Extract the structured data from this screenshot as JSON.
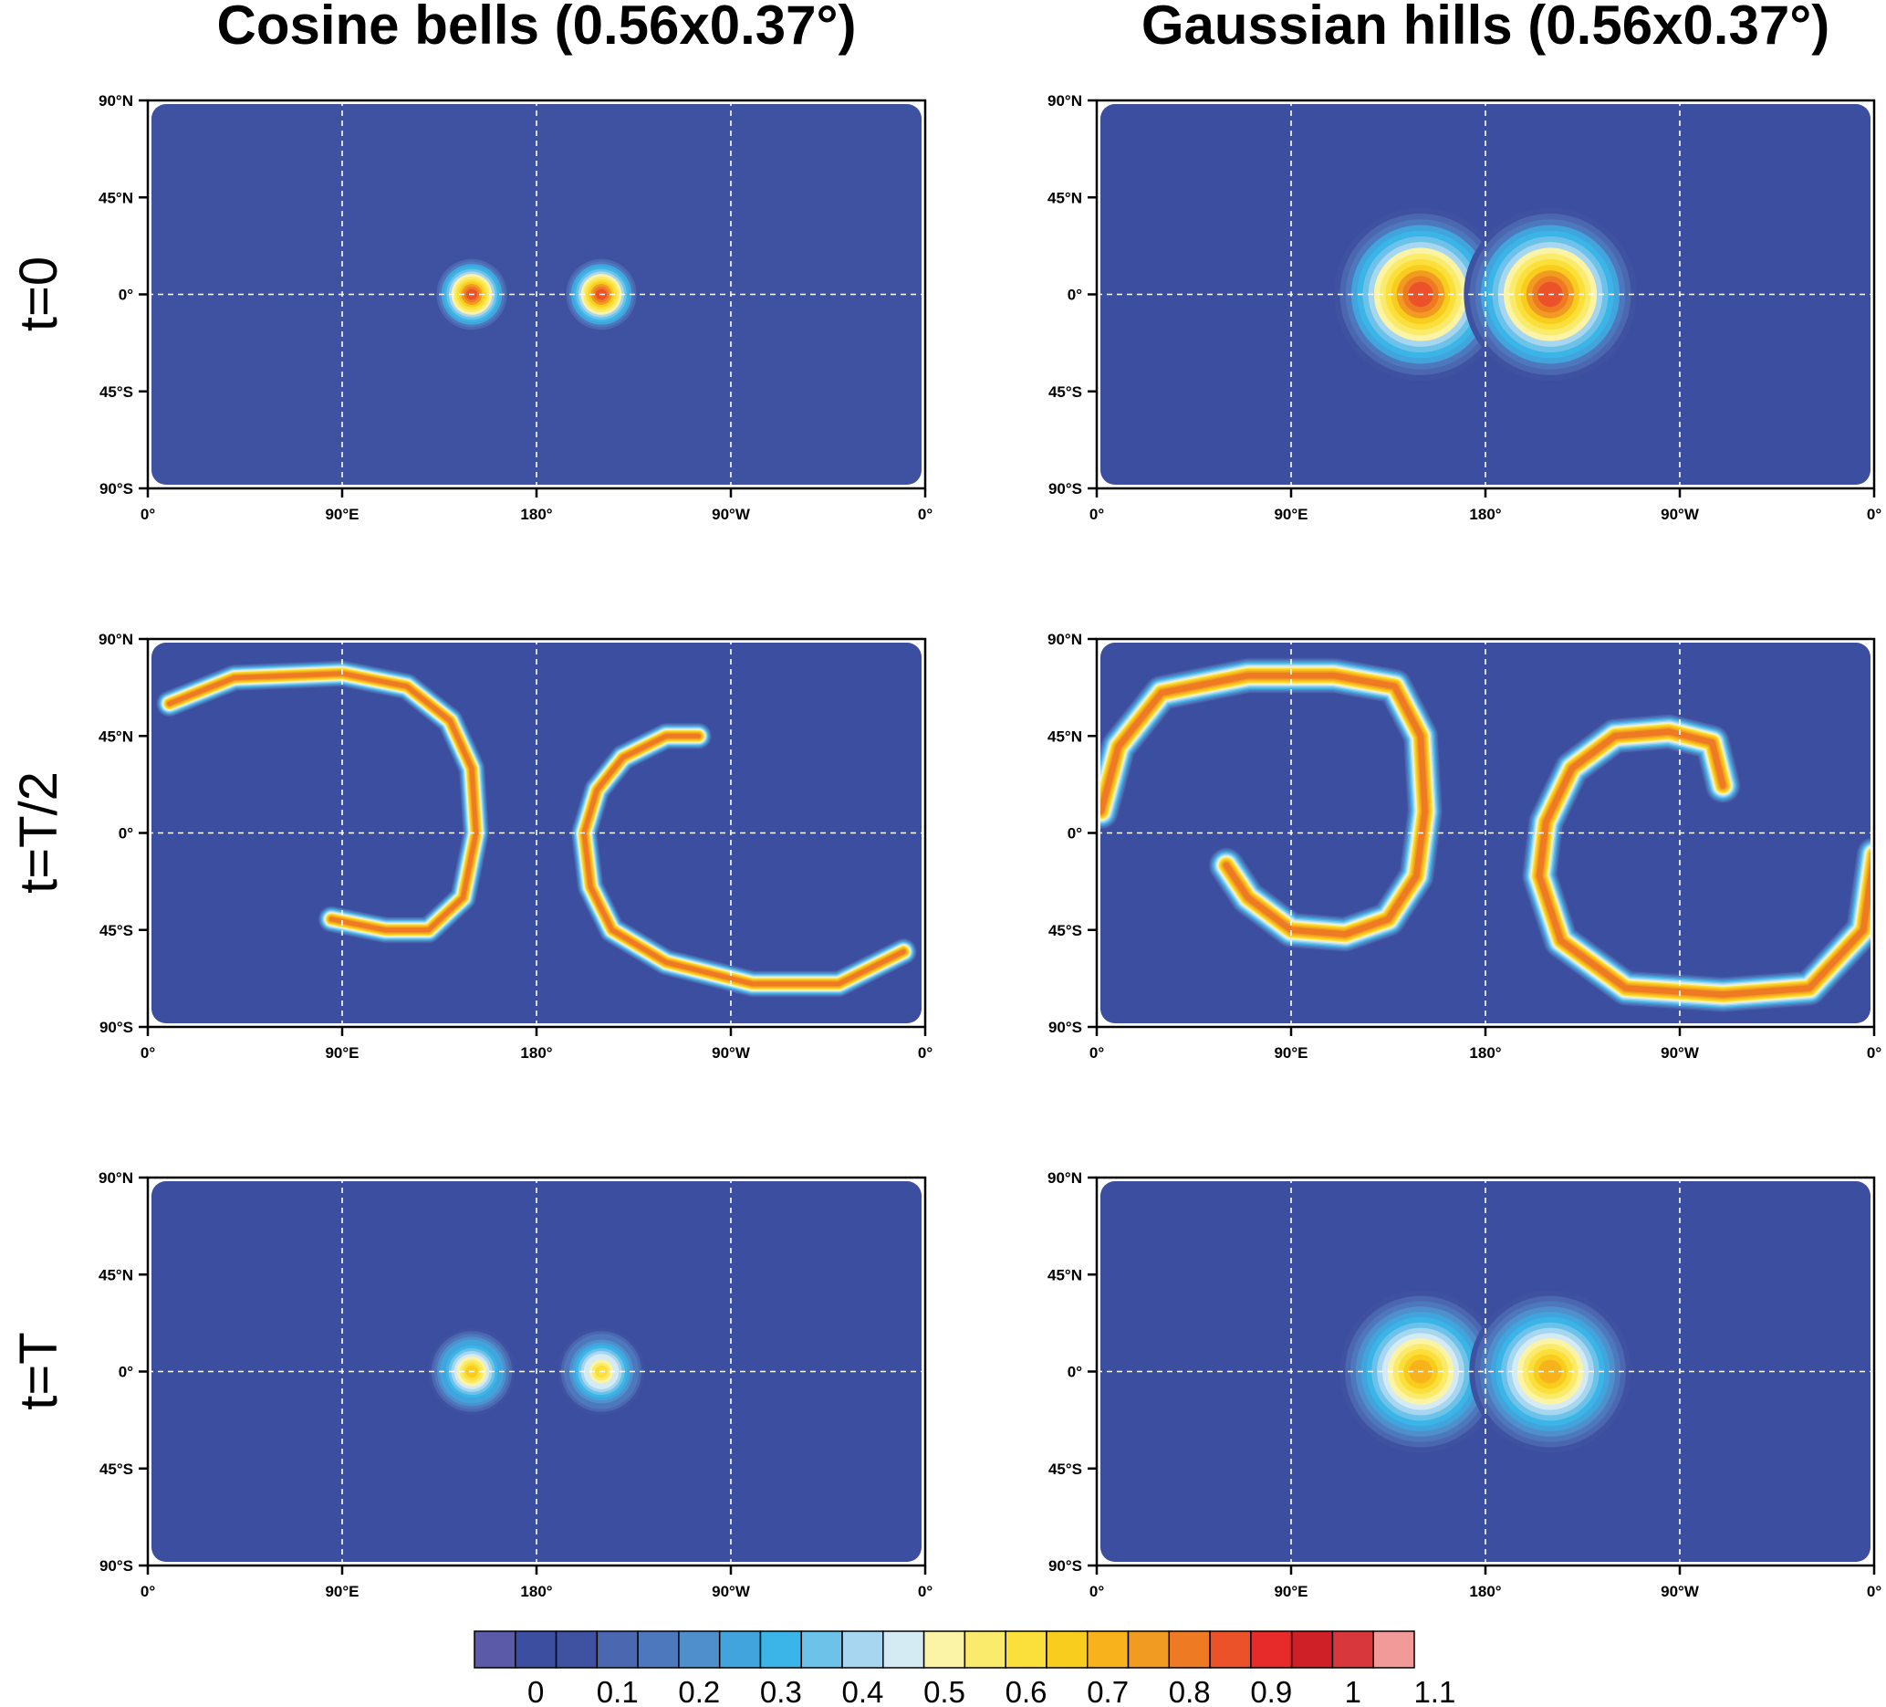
{
  "columns": [
    {
      "title": "Cosine bells (0.56x0.37°)"
    },
    {
      "title": "Gaussian hills (0.56x0.37°)"
    }
  ],
  "rows": [
    {
      "label": "t=0"
    },
    {
      "label": "t=T/2"
    },
    {
      "label": "t=T"
    }
  ],
  "chart_data": {
    "type": "heatmap",
    "layout": "3 rows x 2 columns of global lon-lat maps",
    "x_ticks": [
      "0°",
      "90°E",
      "180°",
      "90°W",
      "0°"
    ],
    "y_ticks": [
      "90°N",
      "45°N",
      "0°",
      "45°S",
      "90°S"
    ],
    "x_range_deg_east": [
      0,
      360
    ],
    "y_range_deg": [
      -90,
      90
    ],
    "grid": "dashed white at 90° longitude and 45° latitude",
    "colorbar": {
      "placement": "bottom",
      "levels": [
        0,
        0.05,
        0.1,
        0.15,
        0.2,
        0.25,
        0.3,
        0.35,
        0.4,
        0.45,
        0.5,
        0.55,
        0.6,
        0.65,
        0.7,
        0.75,
        0.8,
        0.85,
        0.9,
        0.95,
        1,
        1.05,
        1.1
      ],
      "tick_labels": [
        "0",
        "0.1",
        "0.2",
        "0.3",
        "0.4",
        "0.5",
        "0.6",
        "0.7",
        "0.8",
        "0.9",
        "1",
        "1.1"
      ],
      "colors": [
        "#5b5aa8",
        "#3c4ea0",
        "#3f52a2",
        "#4b67b0",
        "#4e78bd",
        "#4f8fcc",
        "#41a4dc",
        "#3bb5e7",
        "#6dc2ea",
        "#a7d6f0",
        "#d4ebf4",
        "#fbf4a6",
        "#fbeb6c",
        "#fbe03b",
        "#f9cd1e",
        "#f8b21c",
        "#f29b22",
        "#ee7b24",
        "#ec522a",
        "#e72a2a",
        "#cf2028",
        "#d8383c",
        "#f29a9a"
      ]
    },
    "panels": [
      {
        "row": 0,
        "col": 0,
        "background_level": 0.1,
        "features": [
          {
            "kind": "blob",
            "lon": 150,
            "lat": 0,
            "radius_deg": 14,
            "peak": 1.0
          },
          {
            "kind": "blob",
            "lon": 210,
            "lat": 0,
            "radius_deg": 14,
            "peak": 1.0
          }
        ]
      },
      {
        "row": 0,
        "col": 1,
        "background_level": 0.05,
        "features": [
          {
            "kind": "blob",
            "lon": 150,
            "lat": 0,
            "radius_deg": 32,
            "peak": 1.0
          },
          {
            "kind": "blob",
            "lon": 210,
            "lat": 0,
            "radius_deg": 32,
            "peak": 1.0
          }
        ]
      },
      {
        "row": 1,
        "col": 0,
        "background_level": 0.05,
        "features": [
          {
            "kind": "filament",
            "peak": 0.95,
            "width_deg": 9,
            "path": [
              [
                10,
                60
              ],
              [
                40,
                72
              ],
              [
                90,
                74
              ],
              [
                120,
                68
              ],
              [
                140,
                52
              ],
              [
                150,
                30
              ],
              [
                152,
                0
              ],
              [
                146,
                -30
              ],
              [
                130,
                -45
              ],
              [
                110,
                -45
              ],
              [
                85,
                -40
              ]
            ]
          },
          {
            "kind": "filament",
            "peak": 0.95,
            "width_deg": 9,
            "path": [
              [
                255,
                45
              ],
              [
                240,
                45
              ],
              [
                220,
                35
              ],
              [
                208,
                20
              ],
              [
                202,
                0
              ],
              [
                205,
                -25
              ],
              [
                215,
                -45
              ],
              [
                240,
                -60
              ],
              [
                280,
                -70
              ],
              [
                320,
                -70
              ],
              [
                350,
                -55
              ]
            ]
          }
        ]
      },
      {
        "row": 1,
        "col": 1,
        "background_level": 0.05,
        "features": [
          {
            "kind": "filament",
            "peak": 0.95,
            "width_deg": 12,
            "path": [
              [
                2,
                10
              ],
              [
                10,
                40
              ],
              [
                30,
                65
              ],
              [
                70,
                73
              ],
              [
                110,
                73
              ],
              [
                138,
                68
              ],
              [
                150,
                45
              ],
              [
                152,
                10
              ],
              [
                148,
                -20
              ],
              [
                135,
                -40
              ],
              [
                115,
                -47
              ],
              [
                90,
                -45
              ],
              [
                70,
                -30
              ],
              [
                60,
                -15
              ]
            ]
          },
          {
            "kind": "filament",
            "peak": 0.95,
            "width_deg": 12,
            "path": [
              [
                290,
                22
              ],
              [
                285,
                42
              ],
              [
                265,
                47
              ],
              [
                240,
                45
              ],
              [
                220,
                30
              ],
              [
                208,
                5
              ],
              [
                205,
                -20
              ],
              [
                215,
                -50
              ],
              [
                245,
                -72
              ],
              [
                290,
                -75
              ],
              [
                330,
                -72
              ],
              [
                355,
                -45
              ],
              [
                360,
                -10
              ]
            ]
          }
        ]
      },
      {
        "row": 2,
        "col": 0,
        "background_level": 0.05,
        "features": [
          {
            "kind": "blob",
            "lon": 150,
            "lat": 0,
            "radius_deg": 16,
            "peak": 0.75
          },
          {
            "kind": "blob",
            "lon": 210,
            "lat": 0,
            "radius_deg": 16,
            "peak": 0.72
          }
        ]
      },
      {
        "row": 2,
        "col": 1,
        "background_level": 0.05,
        "features": [
          {
            "kind": "blob",
            "lon": 150,
            "lat": 0,
            "radius_deg": 30,
            "peak": 0.8
          },
          {
            "kind": "blob",
            "lon": 210,
            "lat": 0,
            "radius_deg": 30,
            "peak": 0.8
          }
        ]
      }
    ]
  }
}
